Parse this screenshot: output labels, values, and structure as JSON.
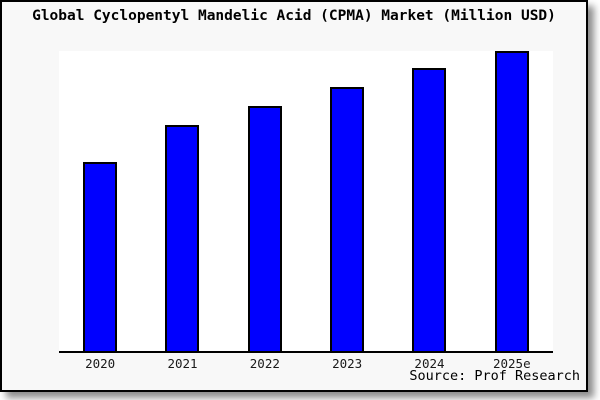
{
  "colors": {
    "frame_background": "#f8f8f8",
    "plot_background": "#ffffff",
    "bar_fill": "#0000ff",
    "bar_border": "#000000",
    "frame_border": "#000000",
    "label_text": "#1a1a1a"
  },
  "chart_data": {
    "type": "bar",
    "title": "Global Cyclopentyl Mandelic Acid (CPMA) Market (Million USD)",
    "categories": [
      "2020",
      "2021",
      "2022",
      "2023",
      "2024",
      "2025e"
    ],
    "values": [
      63,
      75.3,
      81.7,
      88,
      94.2,
      100
    ],
    "value_axis": {
      "visible": false,
      "note": "no y-axis ticks or numeric labels shown in image; values are bar heights normalized so 2025e = 100 (top of plot)"
    },
    "xlabel": "",
    "ylabel": "",
    "ylim": [
      0,
      100
    ],
    "grid": false,
    "legend": false,
    "bar_color": "#0000ff",
    "source": "Source: Prof Research"
  }
}
